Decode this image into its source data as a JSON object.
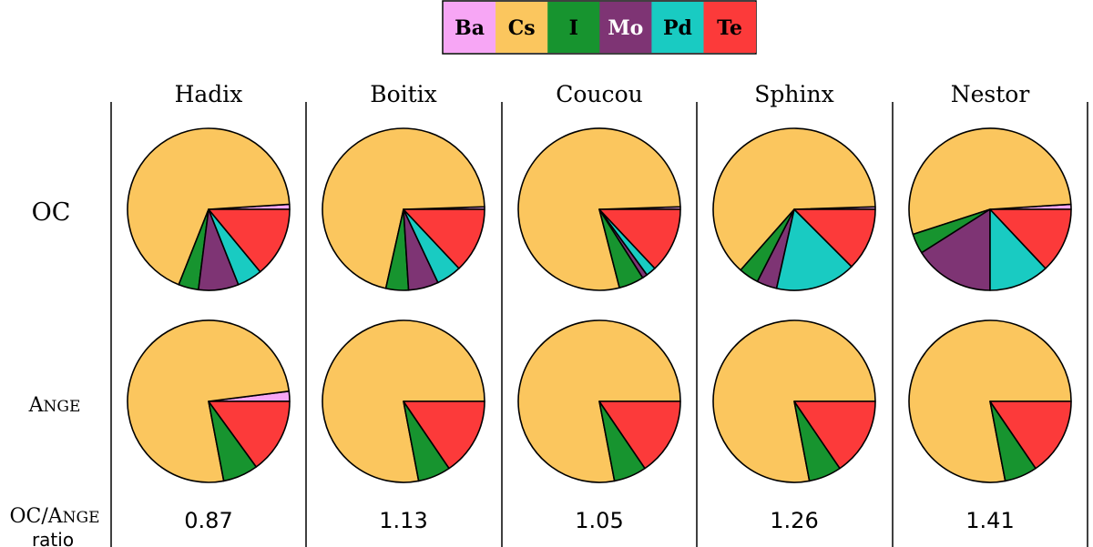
{
  "chart_data": {
    "type": "pie",
    "legend": {
      "placement": "top-center",
      "entries": [
        {
          "label": "Ba",
          "color": "#F7A6F5"
        },
        {
          "label": "Cs",
          "color": "#FBC65E"
        },
        {
          "label": "I",
          "color": "#17942F"
        },
        {
          "label": "Mo",
          "color": "#7E3474"
        },
        {
          "label": "Pd",
          "color": "#19CBC2"
        },
        {
          "label": "Te",
          "color": "#FC3A3A"
        }
      ]
    },
    "columns": [
      "Hadix",
      "Boitix",
      "Coucou",
      "Sphinx",
      "Nestor"
    ],
    "row_labels": {
      "oc": "OC",
      "ange_small_caps_first": "A",
      "ange_small_caps_rest": "NGE",
      "ratio_prefix": "OC/",
      "ratio_small_caps_first": "A",
      "ratio_small_caps_rest": "NGE",
      "ratio_suffix": "ratio"
    },
    "series_order": [
      "Ba",
      "Cs",
      "I",
      "Mo",
      "Pd",
      "Te"
    ],
    "oc": [
      {
        "name": "Hadix",
        "values": {
          "Ba": 1,
          "Cs": 68,
          "I": 4,
          "Mo": 8,
          "Pd": 5,
          "Te": 14
        }
      },
      {
        "name": "Boitix",
        "values": {
          "Ba": 0.5,
          "Cs": 71,
          "I": 4.5,
          "Mo": 6,
          "Pd": 5,
          "Te": 13
        }
      },
      {
        "name": "Coucou",
        "values": {
          "Ba": 0.5,
          "Cs": 78.5,
          "I": 5,
          "Mo": 1,
          "Pd": 2,
          "Te": 13
        }
      },
      {
        "name": "Sphinx",
        "values": {
          "Ba": 0.5,
          "Cs": 63,
          "I": 4,
          "Mo": 4,
          "Pd": 16,
          "Te": 12.5
        }
      },
      {
        "name": "Nestor",
        "values": {
          "Ba": 1,
          "Cs": 54,
          "I": 4,
          "Mo": 16,
          "Pd": 12,
          "Te": 13
        }
      }
    ],
    "ange": [
      {
        "name": "Hadix",
        "values": {
          "Ba": 2,
          "Cs": 76,
          "I": 7,
          "Mo": 0,
          "Pd": 0,
          "Te": 15
        }
      },
      {
        "name": "Boitix",
        "values": {
          "Ba": 0,
          "Cs": 78,
          "I": 6.5,
          "Mo": 0,
          "Pd": 0,
          "Te": 15.5
        }
      },
      {
        "name": "Coucou",
        "values": {
          "Ba": 0,
          "Cs": 78,
          "I": 6.5,
          "Mo": 0,
          "Pd": 0,
          "Te": 15.5
        }
      },
      {
        "name": "Sphinx",
        "values": {
          "Ba": 0,
          "Cs": 78,
          "I": 6.5,
          "Mo": 0,
          "Pd": 0,
          "Te": 15.5
        }
      },
      {
        "name": "Nestor",
        "values": {
          "Ba": 0,
          "Cs": 78,
          "I": 6.5,
          "Mo": 0,
          "Pd": 0,
          "Te": 15.5
        }
      }
    ],
    "ratios": [
      "0.87",
      "1.13",
      "1.05",
      "1.26",
      "1.41"
    ]
  }
}
